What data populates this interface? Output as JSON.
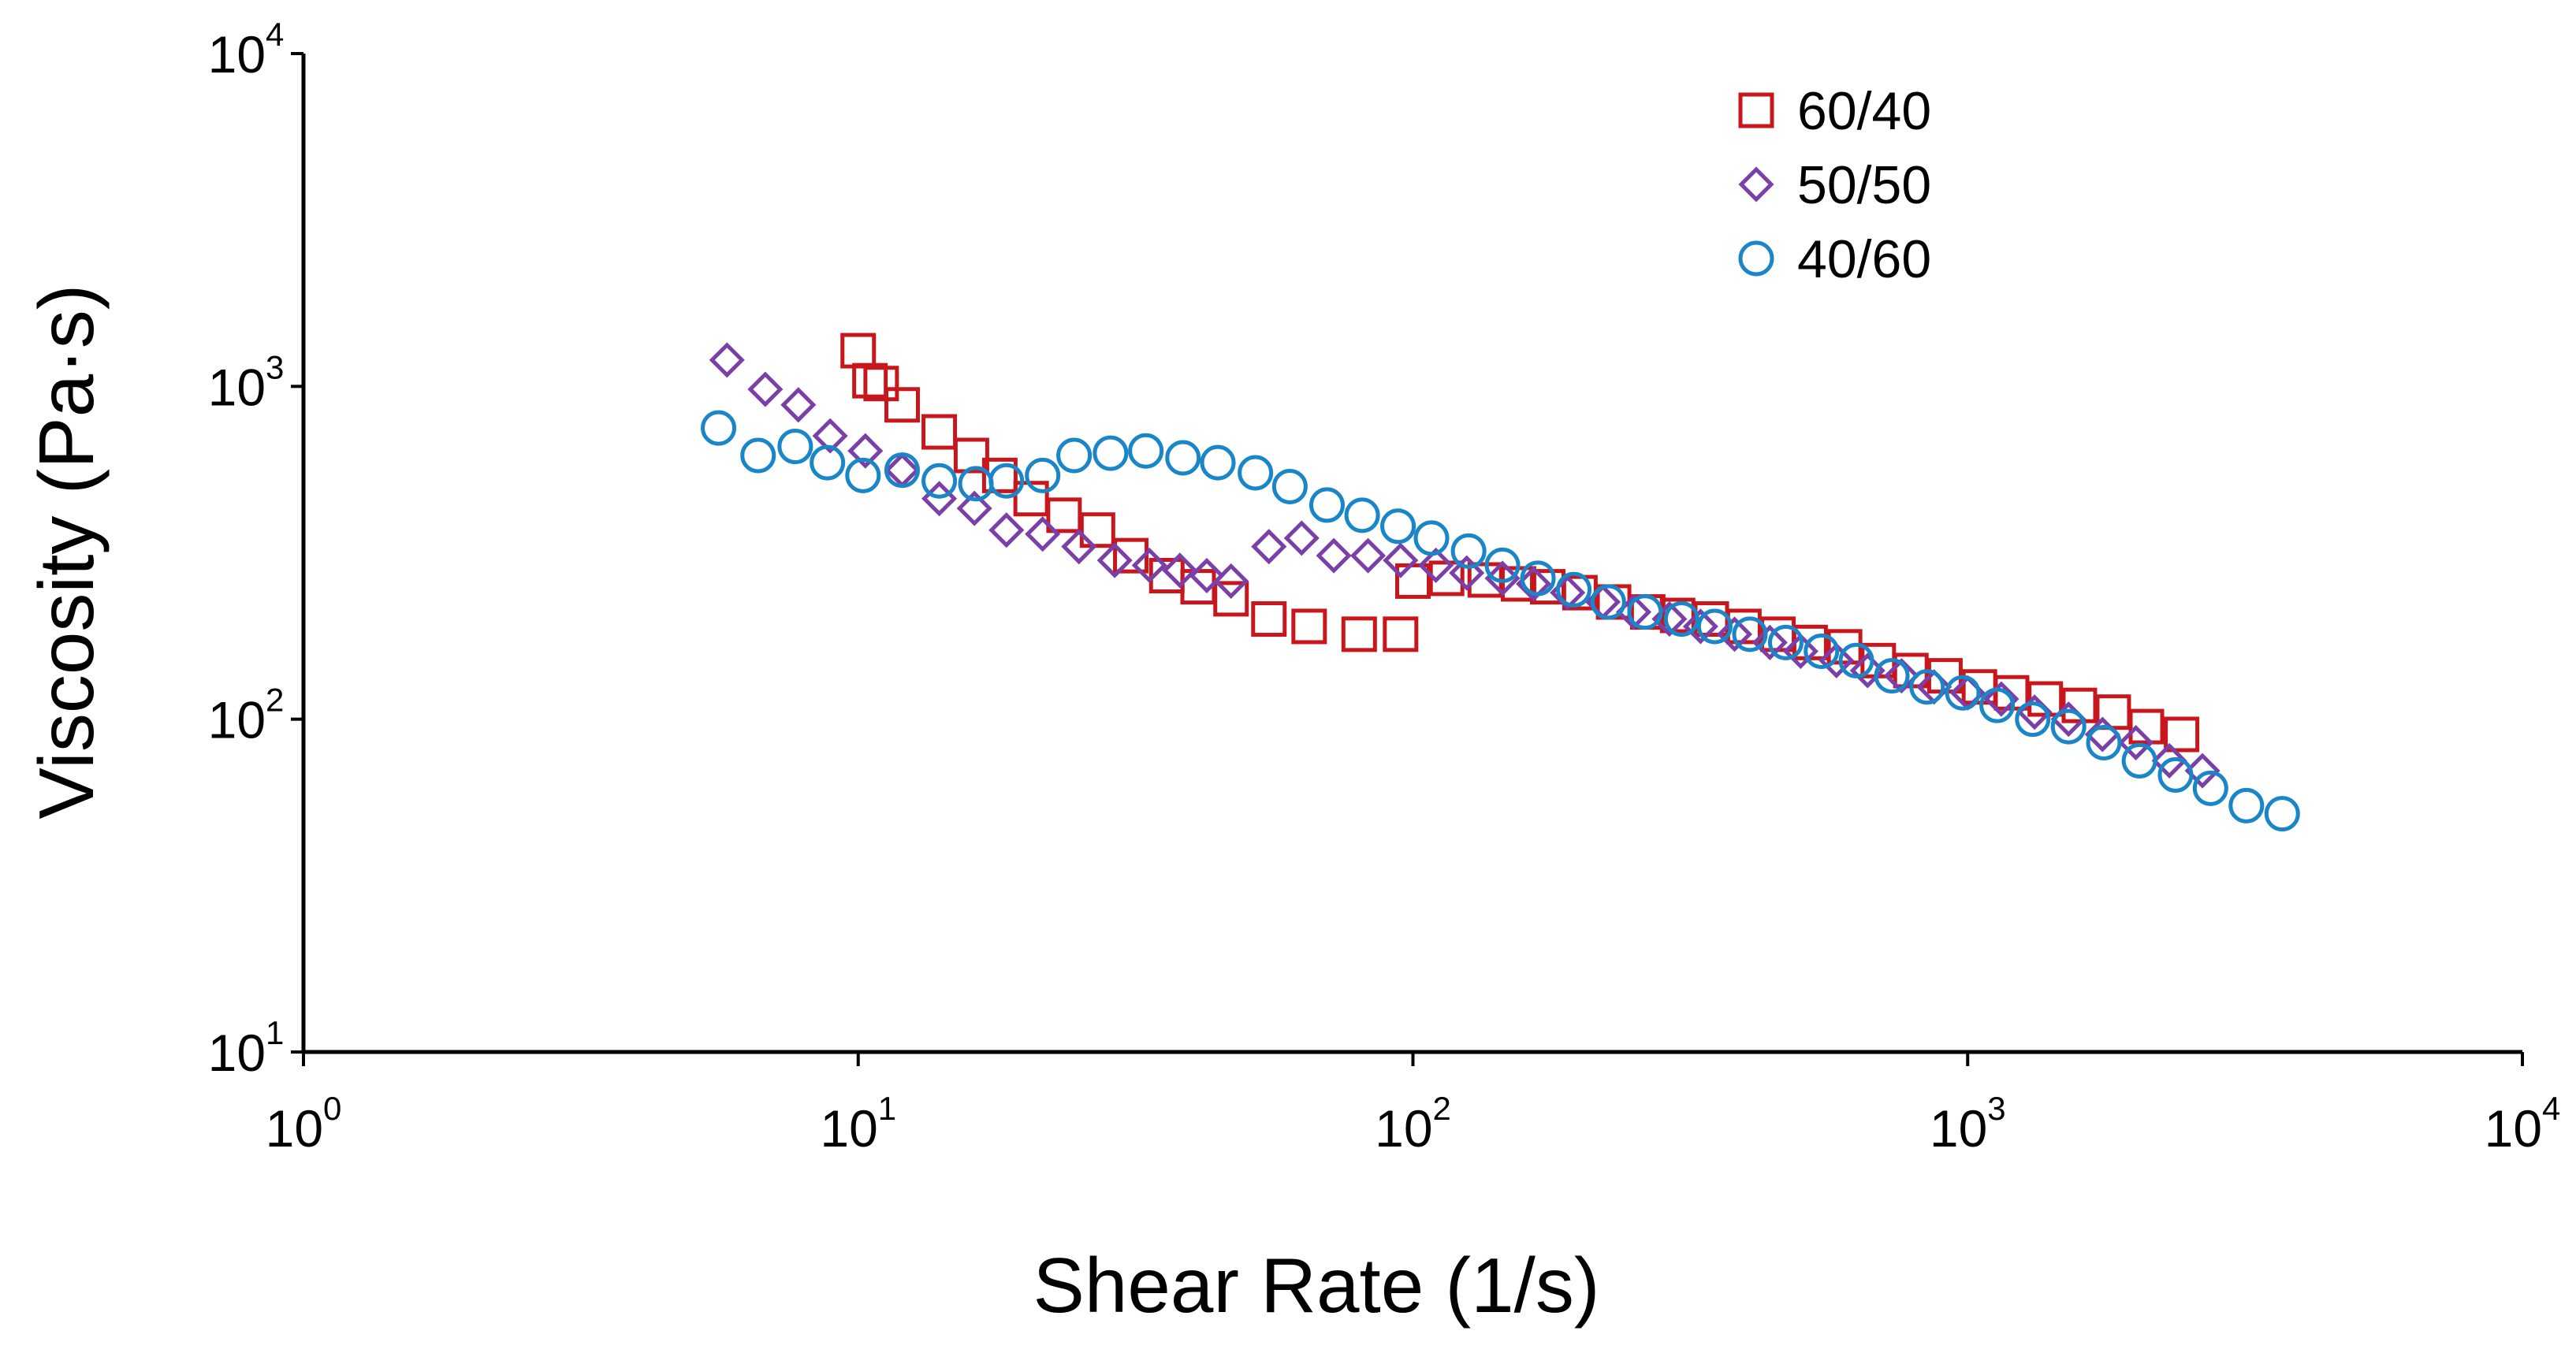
{
  "chart_data": {
    "type": "scatter",
    "title": "",
    "xlabel": "Shear Rate (1/s)",
    "ylabel": "Viscosity (Pa·s)",
    "xscale": "log",
    "yscale": "log",
    "xlim": [
      1,
      10000
    ],
    "ylim": [
      10,
      10000
    ],
    "grid": false,
    "legend_position": "top-right",
    "x_ticks": [
      {
        "base": "10",
        "exp": "0"
      },
      {
        "base": "10",
        "exp": "1"
      },
      {
        "base": "10",
        "exp": "2"
      },
      {
        "base": "10",
        "exp": "3"
      },
      {
        "base": "10",
        "exp": "4"
      }
    ],
    "y_ticks": [
      {
        "base": "10",
        "exp": "1"
      },
      {
        "base": "10",
        "exp": "2"
      },
      {
        "base": "10",
        "exp": "3"
      },
      {
        "base": "10",
        "exp": "4"
      }
    ],
    "series": [
      {
        "name": "60/40",
        "marker": "square",
        "color": "#c8161d",
        "x": [
          10.0,
          10.5,
          11.0,
          12.0,
          14.0,
          16.0,
          18.0,
          20.5,
          23.5,
          27.0,
          31.0,
          36.0,
          41.0,
          47.0,
          55.0,
          65.0,
          80.0,
          95.0,
          100,
          115,
          135,
          155,
          175,
          200,
          230,
          265,
          300,
          345,
          395,
          455,
          520,
          600,
          690,
          790,
          910,
          1050,
          1200,
          1380,
          1590,
          1830,
          2100,
          2430
        ],
        "y": [
          1280,
          1040,
          1020,
          880,
          730,
          620,
          540,
          460,
          410,
          370,
          310,
          270,
          250,
          230,
          200,
          190,
          180,
          180,
          260,
          265,
          262,
          255,
          250,
          240,
          225,
          210,
          205,
          200,
          190,
          180,
          170,
          165,
          150,
          140,
          135,
          125,
          120,
          115,
          110,
          105,
          95,
          90
        ]
      },
      {
        "name": "50/50",
        "marker": "diamond",
        "color": "#7b3fa8",
        "x": [
          5.8,
          6.8,
          7.8,
          8.9,
          10.3,
          12.0,
          14.0,
          16.2,
          18.5,
          21.5,
          25.0,
          29.0,
          33.5,
          38.0,
          42.5,
          47.0,
          55.0,
          63.0,
          72.0,
          83.0,
          95.0,
          110,
          125,
          145,
          165,
          190,
          220,
          250,
          290,
          330,
          380,
          440,
          500,
          580,
          660,
          760,
          870,
          1000,
          1150,
          1320,
          1520,
          1750,
          2010,
          2310,
          2650
        ],
        "y": [
          1200,
          980,
          880,
          710,
          640,
          560,
          460,
          430,
          370,
          360,
          330,
          300,
          290,
          280,
          270,
          260,
          330,
          350,
          310,
          310,
          300,
          290,
          275,
          265,
          255,
          240,
          225,
          210,
          200,
          190,
          180,
          170,
          160,
          150,
          140,
          135,
          125,
          120,
          115,
          105,
          100,
          90,
          85,
          75,
          70
        ]
      },
      {
        "name": "40/60",
        "marker": "circle",
        "color": "#1a86c8",
        "x": [
          5.6,
          6.6,
          7.7,
          8.8,
          10.2,
          12.0,
          14.0,
          16.3,
          18.5,
          21.5,
          24.5,
          28.5,
          33.0,
          38.5,
          44.5,
          52.0,
          60.0,
          70.0,
          81.0,
          94.0,
          108,
          126,
          145,
          168,
          195,
          225,
          262,
          305,
          350,
          405,
          470,
          545,
          630,
          730,
          845,
          980,
          1130,
          1310,
          1520,
          1760,
          2040,
          2370,
          2740,
          3180,
          3690
        ],
        "y": [
          750,
          620,
          660,
          590,
          540,
          560,
          520,
          510,
          520,
          540,
          620,
          630,
          640,
          610,
          590,
          550,
          500,
          440,
          410,
          380,
          350,
          320,
          290,
          265,
          245,
          225,
          210,
          200,
          190,
          180,
          170,
          160,
          150,
          135,
          125,
          120,
          110,
          100,
          95,
          85,
          75,
          68,
          62,
          55,
          52
        ]
      }
    ]
  }
}
